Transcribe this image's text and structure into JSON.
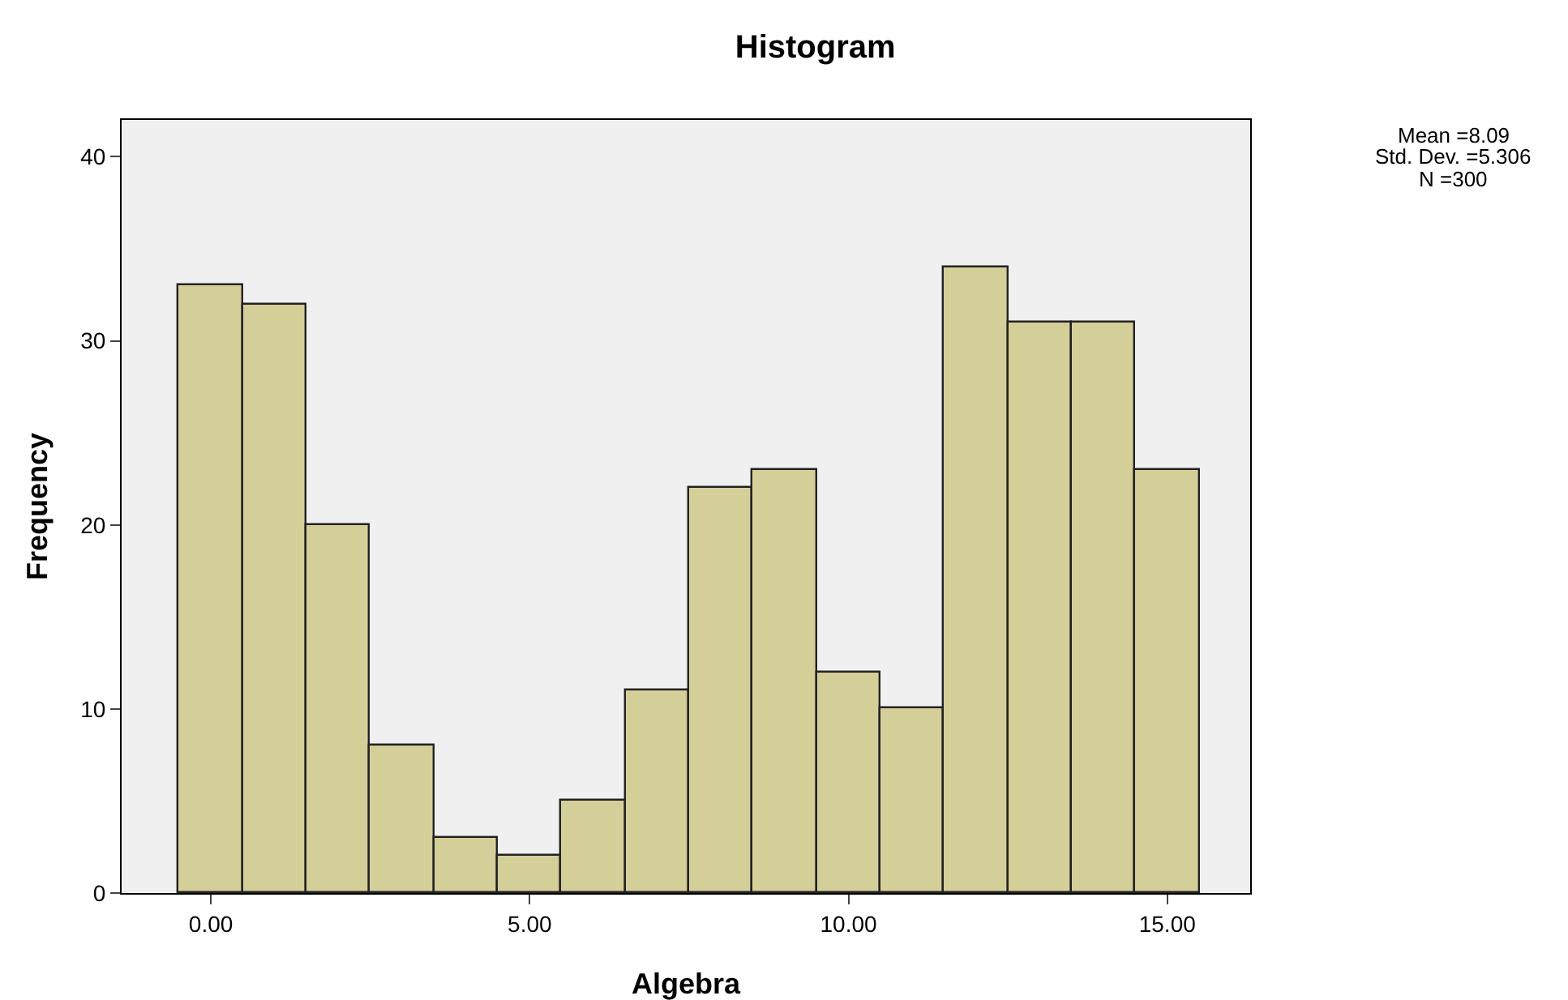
{
  "chart_data": {
    "type": "histogram",
    "title": "Histogram",
    "xlabel": "Algebra",
    "ylabel": "Frequency",
    "bins": [
      -0.5,
      0.5,
      1.5,
      2.5,
      3.5,
      4.5,
      5.5,
      6.5,
      7.5,
      8.5,
      9.5,
      10.5,
      11.5,
      12.5,
      13.5,
      14.5,
      15.5
    ],
    "values": [
      33,
      32,
      20,
      8,
      3,
      2,
      5,
      11,
      22,
      23,
      12,
      10,
      34,
      31,
      31,
      23
    ],
    "color": "#d4cf98",
    "xlim": [
      -1.4,
      16.3
    ],
    "xticks": [
      {
        "value": 0,
        "label": "0.00"
      },
      {
        "value": 5,
        "label": "5.00"
      },
      {
        "value": 10,
        "label": "10.00"
      },
      {
        "value": 15,
        "label": "15.00"
      }
    ],
    "ylim": [
      0,
      42
    ],
    "yticks": [
      0,
      10,
      20,
      30,
      40
    ],
    "annotations": [
      "Mean =8.09",
      "Std. Dev. =5.306",
      "N =300"
    ]
  }
}
